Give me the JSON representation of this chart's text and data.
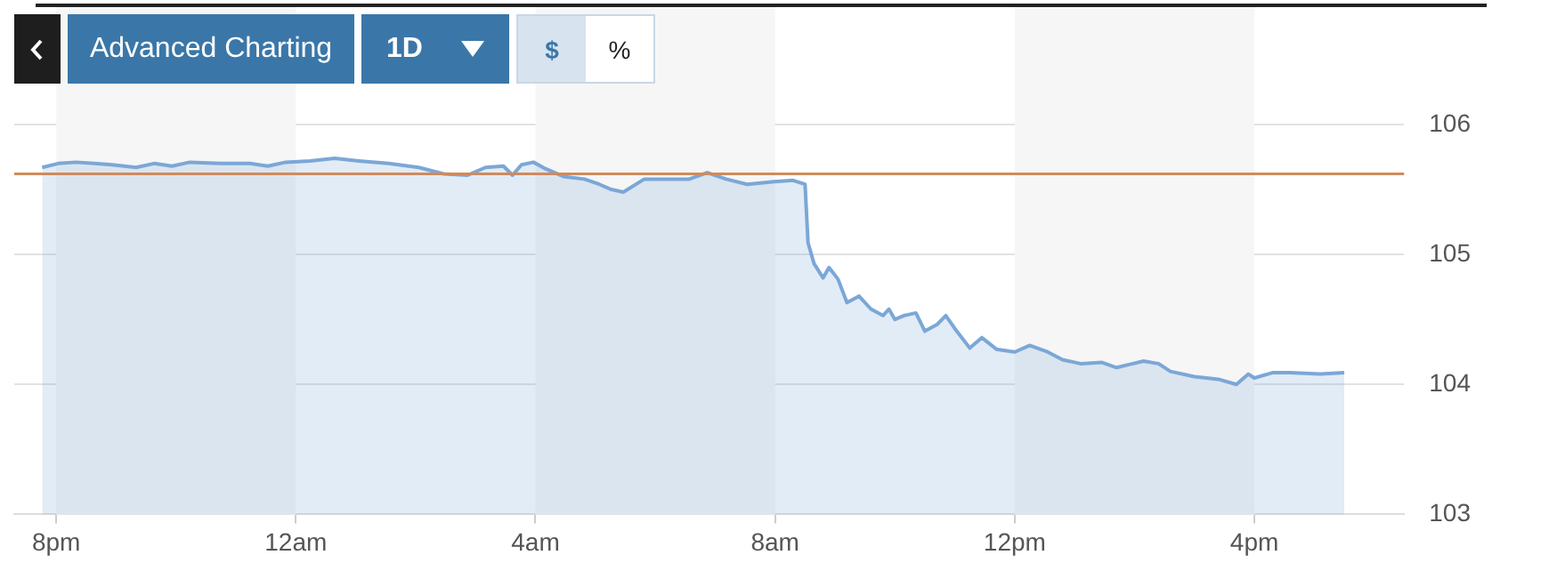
{
  "chart_data": {
    "type": "area",
    "annotations": [
      "Advanced Charting",
      "1D",
      "$",
      "%"
    ],
    "x": [
      "--01-01T19:46",
      "--01-01T20:02",
      "--01-01T20:20",
      "--01-01T20:38",
      "--01-01T20:56",
      "--01-01T21:20",
      "--01-01T21:38",
      "--01-01T21:56",
      "--01-01T22:14",
      "--01-01T22:44",
      "--01-01T23:14",
      "--01-01T23:32",
      "--01-01T23:50",
      "--01-02T00:14",
      "--01-02T00:39",
      "--01-02T01:03",
      "--01-02T01:33",
      "--01-02T02:03",
      "--01-02T02:28",
      "--01-02T02:52",
      "--01-02T03:10",
      "--01-02T03:28",
      "--01-02T03:37",
      "--01-02T03:46",
      "--01-02T03:58",
      "--01-02T04:10",
      "--01-02T04:28",
      "--01-02T04:49",
      "--01-02T05:04",
      "--01-02T05:16",
      "--01-02T05:28",
      "--01-02T05:49",
      "--01-02T06:16",
      "--01-02T06:34",
      "--01-02T06:52",
      "--01-02T07:11",
      "--01-02T07:32",
      "--01-02T07:59",
      "--01-02T08:18",
      "--01-02T08:30",
      "--01-02T08:33",
      "--01-02T08:39",
      "--01-02T08:48",
      "--01-02T08:54",
      "--01-02T09:03",
      "--01-02T09:12",
      "--01-02T09:24",
      "--01-02T09:36",
      "--01-02T09:48",
      "--01-02T09:54",
      "--01-02T10:00",
      "--01-02T10:09",
      "--01-02T10:21",
      "--01-02T10:30",
      "--01-02T10:42",
      "--01-02T10:51",
      "--01-02T11:00",
      "--01-02T11:15",
      "--01-02T11:27",
      "--01-02T11:42",
      "--01-02T12:00",
      "--01-02T12:15",
      "--01-02T12:33",
      "--01-02T12:48",
      "--01-02T13:06",
      "--01-02T13:27",
      "--01-02T13:42",
      "--01-02T14:09",
      "--01-02T14:24",
      "--01-02T14:36",
      "--01-02T15:00",
      "--01-02T15:24",
      "--01-02T15:42",
      "--01-02T15:54",
      "--01-02T16:00",
      "--01-02T16:18",
      "--01-02T16:36",
      "--01-02T17:06",
      "--01-02T17:30"
    ],
    "series": [
      {
        "color": "#7ba7d7",
        "values": [
          105.67,
          105.7,
          105.71,
          105.7,
          105.69,
          105.67,
          105.7,
          105.68,
          105.71,
          105.7,
          105.7,
          105.68,
          105.71,
          105.72,
          105.74,
          105.72,
          105.7,
          105.67,
          105.62,
          105.61,
          105.67,
          105.68,
          105.61,
          105.69,
          105.71,
          105.66,
          105.6,
          105.58,
          105.54,
          105.5,
          105.48,
          105.58,
          105.58,
          105.58,
          105.63,
          105.58,
          105.54,
          105.56,
          105.57,
          105.54,
          105.09,
          104.93,
          104.82,
          104.9,
          104.81,
          104.63,
          104.68,
          104.58,
          104.53,
          104.58,
          104.5,
          104.53,
          104.55,
          104.41,
          104.46,
          104.53,
          104.43,
          104.28,
          104.36,
          104.27,
          104.25,
          104.3,
          104.25,
          104.19,
          104.16,
          104.17,
          104.13,
          104.18,
          104.16,
          104.1,
          104.06,
          104.04,
          104.0,
          104.08,
          104.05,
          104.09,
          104.09,
          104.08,
          104.09
        ]
      }
    ],
    "xlim": [
      "--01-01T19:18",
      "--01-02T18:30"
    ],
    "xticks": [
      {
        "value": "--01-01T20:00",
        "label": "8pm"
      },
      {
        "value": "--01-02T00:00",
        "label": "12am"
      },
      {
        "value": "--01-02T04:00",
        "label": "4am"
      },
      {
        "value": "--01-02T08:00",
        "label": "8am"
      },
      {
        "value": "--01-02T12:00",
        "label": "12pm"
      },
      {
        "value": "--01-02T16:00",
        "label": "4pm"
      }
    ],
    "ylim": [
      103,
      106
    ],
    "yticks": [
      103,
      104,
      105,
      106
    ],
    "grid": "y",
    "ref_lines": [
      {
        "axis": "y",
        "value": 105.62,
        "color": "#d08a5c"
      }
    ],
    "bands": [
      {
        "axis": "x",
        "from": "--01-01T20:00",
        "to": "--01-02T00:00",
        "color": "#f6f6f6"
      },
      {
        "axis": "x",
        "from": "--01-02T04:00",
        "to": "--01-02T08:00",
        "color": "#f6f6f6"
      },
      {
        "axis": "x",
        "from": "--01-02T12:00",
        "to": "--01-02T16:00",
        "color": "#f6f6f6"
      }
    ]
  }
}
